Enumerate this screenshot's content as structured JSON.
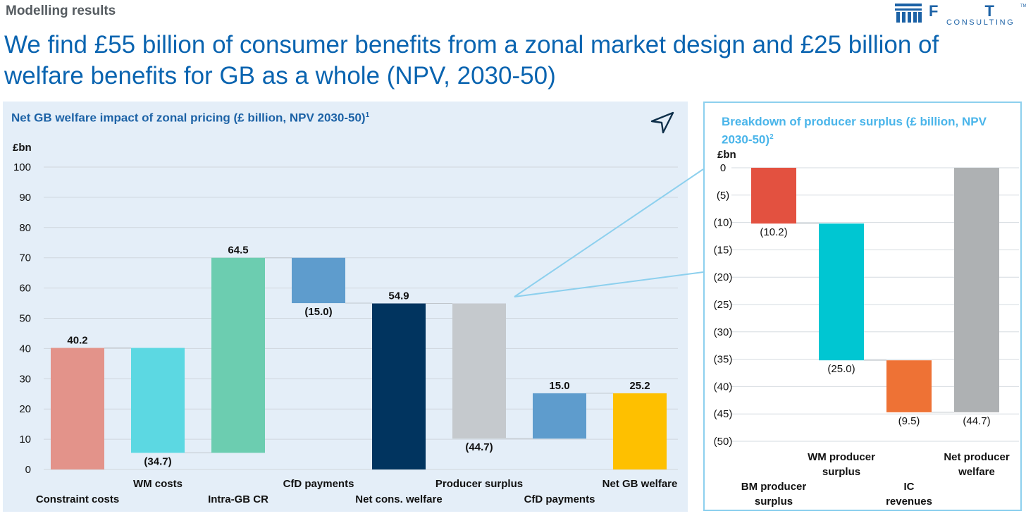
{
  "header": {
    "section_label": "Modelling results",
    "headline_line1": "We find £55 billion of consumer benefits from a zonal market design and £25 billion of",
    "headline_line2": "welfare benefits for GB as a whole (NPV, 2030-50)",
    "logo_text": "F T I",
    "logo_subtext": "CONSULTING",
    "logo_tm": "TM"
  },
  "left_panel": {
    "title": "Net GB welfare impact of zonal pricing (£ billion, NPV 2030-50)",
    "title_sup": "1",
    "icon": "navigation-arrow-icon"
  },
  "right_panel": {
    "title": "Breakdown of producer surplus (£ billion, NPV 2030-50)",
    "title_sup": "2"
  },
  "colors": {
    "constraint": "#e3938a",
    "wm": "#5cd8e2",
    "intra": "#6ccdb0",
    "cfd": "#5e9ccd",
    "netcons": "#01345f",
    "producer": "#c5c9cd",
    "netgb": "#fec000",
    "bm": "#e35140",
    "wm_producer": "#00c6d2",
    "ic": "#ee7235",
    "net_producer": "#aeb1b3"
  },
  "chart_data": [
    {
      "type": "bar",
      "subtype": "waterfall",
      "title": "Net GB welfare impact of zonal pricing (£ billion, NPV 2030-50)",
      "ylabel": "£bn",
      "ylim": [
        0,
        100
      ],
      "yticks": [
        0,
        10,
        20,
        30,
        40,
        50,
        60,
        70,
        80,
        90,
        100
      ],
      "grid": true,
      "bars": [
        {
          "category": "Constraint costs",
          "bottom": 0,
          "top": 40.2,
          "label": "40.2",
          "label_pos": "above",
          "color_key": "constraint",
          "cat_row": 2
        },
        {
          "category": "WM costs",
          "bottom": 5.5,
          "top": 40.2,
          "label": "(34.7)",
          "label_pos": "below",
          "color_key": "wm",
          "cat_row": 1
        },
        {
          "category": "Intra-GB CR",
          "bottom": 5.5,
          "top": 70.0,
          "label": "64.5",
          "label_pos": "above",
          "color_key": "intra",
          "cat_row": 2
        },
        {
          "category": "CfD payments",
          "bottom": 55.0,
          "top": 70.0,
          "label": "(15.0)",
          "label_pos": "below",
          "color_key": "cfd",
          "cat_row": 1
        },
        {
          "category": "Net cons. welfare",
          "bottom": 0,
          "top": 54.9,
          "label": "54.9",
          "label_pos": "above",
          "color_key": "netcons",
          "cat_row": 2
        },
        {
          "category": "Producer surplus",
          "bottom": 10.2,
          "top": 54.9,
          "label": "(44.7)",
          "label_pos": "below",
          "color_key": "producer",
          "cat_row": 1
        },
        {
          "category": "CfD payments",
          "bottom": 10.2,
          "top": 25.2,
          "label": "15.0",
          "label_pos": "above",
          "color_key": "cfd",
          "cat_row": 2
        },
        {
          "category": "Net GB welfare",
          "bottom": 0,
          "top": 25.2,
          "label": "25.2",
          "label_pos": "above",
          "color_key": "netgb",
          "cat_row": 1
        }
      ]
    },
    {
      "type": "bar",
      "subtype": "waterfall",
      "title": "Breakdown of producer surplus (£ billion, NPV 2030-50)",
      "ylabel": "£bn",
      "ylim": [
        -50,
        0
      ],
      "yticks": [
        0,
        -5,
        -10,
        -15,
        -20,
        -25,
        -30,
        -35,
        -40,
        -45,
        -50
      ],
      "ytick_labels": [
        "0",
        "(5)",
        "(10)",
        "(15)",
        "(20)",
        "(25)",
        "(30)",
        "(35)",
        "(40)",
        "(45)",
        "(50)"
      ],
      "grid": true,
      "bars": [
        {
          "category": "BM producer surplus",
          "cat_lines": [
            "BM producer",
            "surplus"
          ],
          "cat_row": 2,
          "start": 0,
          "end": -10.2,
          "label": "(10.2)",
          "color_key": "bm"
        },
        {
          "category": "WM producer surplus",
          "cat_lines": [
            "WM producer",
            "surplus"
          ],
          "cat_row": 1,
          "start": -10.2,
          "end": -35.2,
          "label": "(25.0)",
          "color_key": "wm_producer"
        },
        {
          "category": "IC revenues",
          "cat_lines": [
            "IC",
            "revenues"
          ],
          "cat_row": 2,
          "start": -35.2,
          "end": -44.7,
          "label": "(9.5)",
          "color_key": "ic"
        },
        {
          "category": "Net producer welfare",
          "cat_lines": [
            "Net producer",
            "welfare"
          ],
          "cat_row": 1,
          "start": 0,
          "end": -44.7,
          "label": "(44.7)",
          "color_key": "net_producer"
        }
      ]
    }
  ]
}
